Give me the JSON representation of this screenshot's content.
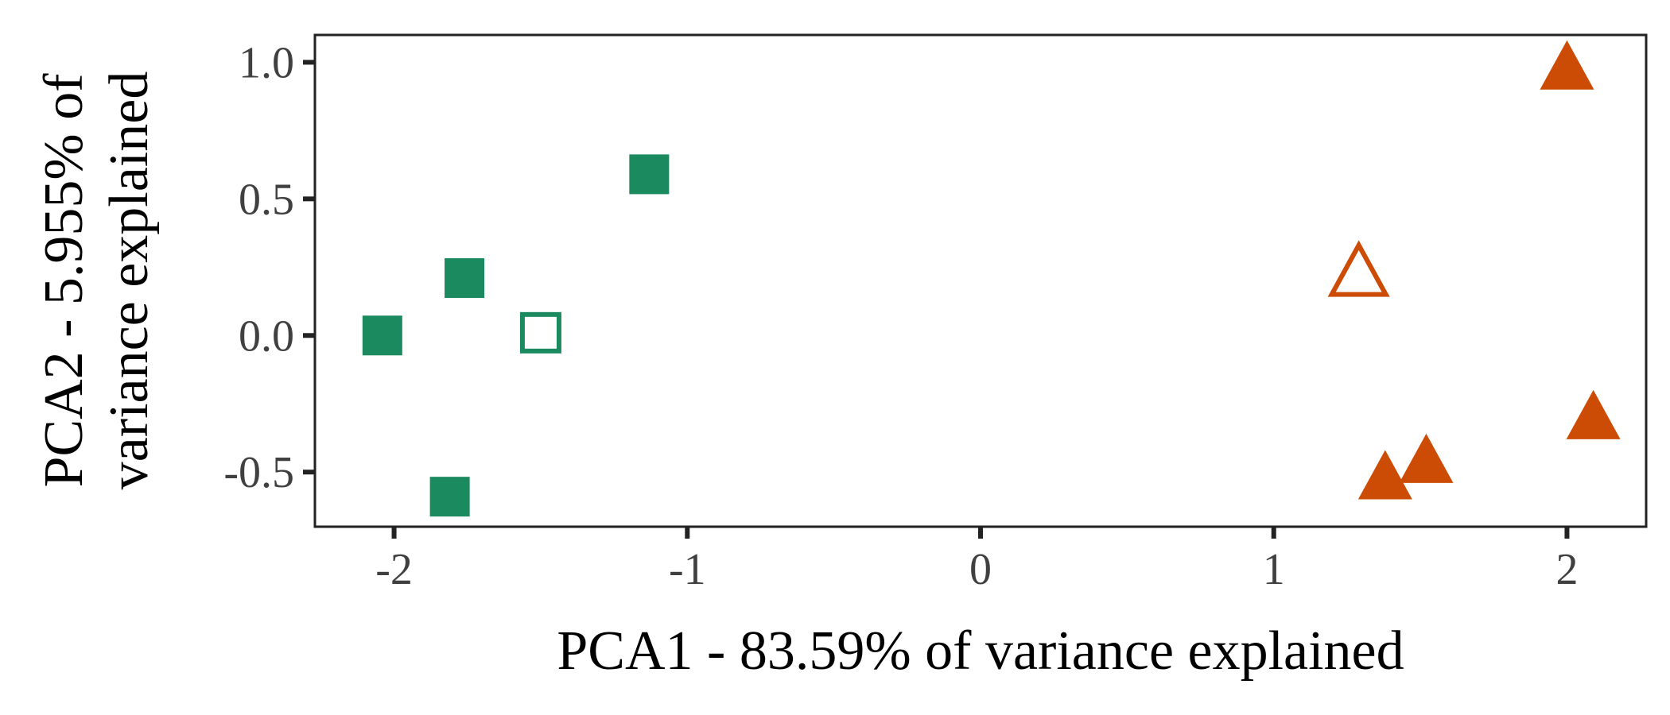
{
  "chart_data": {
    "type": "scatter",
    "title": "",
    "xlabel": "PCA1 - 83.59% of variance explained",
    "ylabel_lines": [
      "PCA2 - 5.955% of",
      "variance explained"
    ],
    "xlim": [
      -2.27,
      2.27
    ],
    "ylim": [
      -0.7,
      1.1
    ],
    "xticks": [
      -2,
      -1,
      0,
      1,
      2
    ],
    "xtick_labels": [
      "-2",
      "-1",
      "0",
      "1",
      "2"
    ],
    "yticks": [
      -0.5,
      0.0,
      0.5,
      1.0
    ],
    "ytick_labels": [
      "-0.5",
      "0.0",
      "0.5",
      "1.0"
    ],
    "grid": false,
    "legend": "none",
    "series": [
      {
        "marker": "square",
        "color": "#1b8a5f",
        "points": [
          {
            "x": -2.04,
            "y": 0.0,
            "filled": true
          },
          {
            "x": -1.76,
            "y": 0.21,
            "filled": true
          },
          {
            "x": -1.13,
            "y": 0.59,
            "filled": true
          },
          {
            "x": -1.81,
            "y": -0.59,
            "filled": true
          },
          {
            "x": -1.5,
            "y": 0.01,
            "filled": false
          }
        ]
      },
      {
        "marker": "triangle",
        "color": "#cc4c06",
        "points": [
          {
            "x": 2.0,
            "y": 0.97,
            "filled": true
          },
          {
            "x": 2.09,
            "y": -0.31,
            "filled": true
          },
          {
            "x": 1.52,
            "y": -0.47,
            "filled": true
          },
          {
            "x": 1.38,
            "y": -0.53,
            "filled": true
          },
          {
            "x": 1.29,
            "y": 0.22,
            "filled": false
          }
        ]
      }
    ]
  }
}
